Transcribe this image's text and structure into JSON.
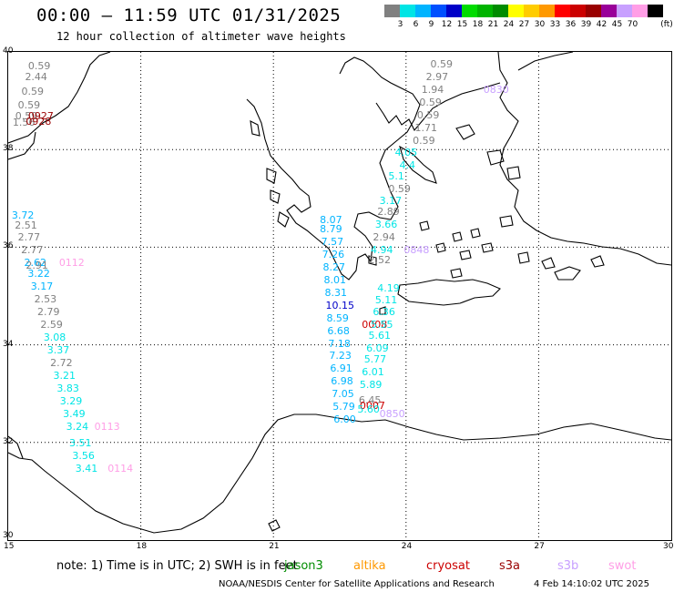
{
  "header": {
    "title": "00:00 — 11:59 UTC 01/31/2025",
    "subtitle": "12 hour collection of altimeter wave heights"
  },
  "colorbar": {
    "unit": "(ft)",
    "entries": [
      {
        "label": "",
        "color": "#808080"
      },
      {
        "label": "3",
        "color": "#00e5e5"
      },
      {
        "label": "6",
        "color": "#00b4ff"
      },
      {
        "label": "9",
        "color": "#0050ff"
      },
      {
        "label": "12",
        "color": "#0000c8"
      },
      {
        "label": "15",
        "color": "#00dc00"
      },
      {
        "label": "18",
        "color": "#00b400"
      },
      {
        "label": "21",
        "color": "#008c00"
      },
      {
        "label": "24",
        "color": "#ffff00"
      },
      {
        "label": "27",
        "color": "#ffcc00"
      },
      {
        "label": "30",
        "color": "#ff9900"
      },
      {
        "label": "33",
        "color": "#ff0000"
      },
      {
        "label": "36",
        "color": "#cc0000"
      },
      {
        "label": "39",
        "color": "#990000"
      },
      {
        "label": "42",
        "color": "#990099"
      },
      {
        "label": "45",
        "color": "#c8a0ff"
      },
      {
        "label": "70",
        "color": "#ff9ee6"
      },
      {
        "label": "",
        "color": "#000000"
      }
    ]
  },
  "axes": {
    "lon_labels": [
      "15",
      "18",
      "21",
      "24",
      "27",
      "30"
    ],
    "lat_labels": [
      "40",
      "38",
      "36",
      "34",
      "32",
      "30"
    ]
  },
  "observations": [
    {
      "v": "0.59",
      "c": "#808080",
      "lon": 15.45,
      "lat": 39.7
    },
    {
      "v": "2.44",
      "c": "#808080",
      "lon": 15.38,
      "lat": 39.47
    },
    {
      "v": "0.59",
      "c": "#808080",
      "lon": 15.3,
      "lat": 39.18
    },
    {
      "v": "0.59",
      "c": "#808080",
      "lon": 15.22,
      "lat": 38.9
    },
    {
      "v": "0.59",
      "c": "#808080",
      "lon": 15.16,
      "lat": 38.67
    },
    {
      "v": "1.56",
      "c": "#808080",
      "lon": 15.1,
      "lat": 38.55
    },
    {
      "v": "0927",
      "c": "#990000",
      "lon": 15.45,
      "lat": 38.67
    },
    {
      "v": "0928",
      "c": "#990000",
      "lon": 15.4,
      "lat": 38.56
    },
    {
      "v": "3.72",
      "c": "#00b4ff",
      "lon": 15.08,
      "lat": 36.64
    },
    {
      "v": "2.51",
      "c": "#808080",
      "lon": 15.15,
      "lat": 36.44
    },
    {
      "v": "2.77",
      "c": "#808080",
      "lon": 15.22,
      "lat": 36.2
    },
    {
      "v": "2.77",
      "c": "#808080",
      "lon": 15.29,
      "lat": 35.94
    },
    {
      "v": "2.62",
      "c": "#00b4ff",
      "lon": 15.36,
      "lat": 35.68
    },
    {
      "v": "2.91",
      "c": "#808080",
      "lon": 15.4,
      "lat": 35.62
    },
    {
      "v": "3.22",
      "c": "#00b4ff",
      "lon": 15.44,
      "lat": 35.45
    },
    {
      "v": "3.17",
      "c": "#00b4ff",
      "lon": 15.51,
      "lat": 35.18
    },
    {
      "v": "2.53",
      "c": "#808080",
      "lon": 15.59,
      "lat": 34.92
    },
    {
      "v": "2.79",
      "c": "#808080",
      "lon": 15.66,
      "lat": 34.66
    },
    {
      "v": "2.59",
      "c": "#808080",
      "lon": 15.73,
      "lat": 34.4
    },
    {
      "v": "3.08",
      "c": "#00e5e5",
      "lon": 15.8,
      "lat": 34.14
    },
    {
      "v": "3.37",
      "c": "#00e5e5",
      "lon": 15.88,
      "lat": 33.88
    },
    {
      "v": "2.72",
      "c": "#808080",
      "lon": 15.95,
      "lat": 33.62
    },
    {
      "v": "3.21",
      "c": "#00e5e5",
      "lon": 16.02,
      "lat": 33.36
    },
    {
      "v": "3.83",
      "c": "#00e5e5",
      "lon": 16.1,
      "lat": 33.1
    },
    {
      "v": "3.29",
      "c": "#00e5e5",
      "lon": 16.17,
      "lat": 32.84
    },
    {
      "v": "3.49",
      "c": "#00e5e5",
      "lon": 16.24,
      "lat": 32.58
    },
    {
      "v": "3.24",
      "c": "#00e5e5",
      "lon": 16.31,
      "lat": 32.32
    },
    {
      "v": "3.51",
      "c": "#00e5e5",
      "lon": 16.38,
      "lat": 31.97
    },
    {
      "v": "3.56",
      "c": "#00e5e5",
      "lon": 16.45,
      "lat": 31.71
    },
    {
      "v": "3.41",
      "c": "#00e5e5",
      "lon": 16.52,
      "lat": 31.45
    },
    {
      "v": "0112",
      "c": "#ff9ee6",
      "lon": 16.15,
      "lat": 35.68
    },
    {
      "v": "0113",
      "c": "#ff9ee6",
      "lon": 16.95,
      "lat": 32.32
    },
    {
      "v": "0114",
      "c": "#ff9ee6",
      "lon": 17.25,
      "lat": 31.45
    },
    {
      "v": "8.07",
      "c": "#00b4ff",
      "lon": 22.05,
      "lat": 36.54
    },
    {
      "v": "8.79",
      "c": "#00b4ff",
      "lon": 22.05,
      "lat": 36.36
    },
    {
      "v": "7.57",
      "c": "#00b4ff",
      "lon": 22.08,
      "lat": 36.1
    },
    {
      "v": "7.26",
      "c": "#00b4ff",
      "lon": 22.1,
      "lat": 35.84
    },
    {
      "v": "8.27",
      "c": "#00b4ff",
      "lon": 22.12,
      "lat": 35.58
    },
    {
      "v": "8.01",
      "c": "#00b4ff",
      "lon": 22.14,
      "lat": 35.32
    },
    {
      "v": "8.31",
      "c": "#00b4ff",
      "lon": 22.16,
      "lat": 35.06
    },
    {
      "v": "10.15",
      "c": "#0000c8",
      "lon": 22.18,
      "lat": 34.8
    },
    {
      "v": "8.59",
      "c": "#00b4ff",
      "lon": 22.2,
      "lat": 34.54
    },
    {
      "v": "6.68",
      "c": "#00b4ff",
      "lon": 22.22,
      "lat": 34.28
    },
    {
      "v": "7.18",
      "c": "#00b4ff",
      "lon": 22.24,
      "lat": 34.02
    },
    {
      "v": "7.23",
      "c": "#00b4ff",
      "lon": 22.26,
      "lat": 33.76
    },
    {
      "v": "6.91",
      "c": "#00b4ff",
      "lon": 22.28,
      "lat": 33.5
    },
    {
      "v": "6.98",
      "c": "#00b4ff",
      "lon": 22.3,
      "lat": 33.24
    },
    {
      "v": "7.05",
      "c": "#00b4ff",
      "lon": 22.32,
      "lat": 32.98
    },
    {
      "v": "5.79",
      "c": "#00b4ff",
      "lon": 22.34,
      "lat": 32.72
    },
    {
      "v": "6.00",
      "c": "#00b4ff",
      "lon": 22.36,
      "lat": 32.46
    },
    {
      "v": "0008",
      "c": "#cc0000",
      "lon": 23.0,
      "lat": 34.41
    },
    {
      "v": "0.59",
      "c": "#808080",
      "lon": 24.55,
      "lat": 39.74
    },
    {
      "v": "2.97",
      "c": "#808080",
      "lon": 24.45,
      "lat": 39.48
    },
    {
      "v": "1.94",
      "c": "#808080",
      "lon": 24.35,
      "lat": 39.22
    },
    {
      "v": "0.59",
      "c": "#808080",
      "lon": 24.3,
      "lat": 38.96
    },
    {
      "v": "0.59",
      "c": "#808080",
      "lon": 24.25,
      "lat": 38.7
    },
    {
      "v": "1.71",
      "c": "#808080",
      "lon": 24.2,
      "lat": 38.44
    },
    {
      "v": "0.59",
      "c": "#808080",
      "lon": 24.15,
      "lat": 38.18
    },
    {
      "v": "0830",
      "c": "#c8a0ff",
      "lon": 25.75,
      "lat": 39.22
    },
    {
      "v": "4.05",
      "c": "#00e5e5",
      "lon": 23.75,
      "lat": 37.92
    },
    {
      "v": "4.4",
      "c": "#00e5e5",
      "lon": 23.85,
      "lat": 37.66
    },
    {
      "v": "5.1",
      "c": "#00e5e5",
      "lon": 23.6,
      "lat": 37.44
    },
    {
      "v": "0.59",
      "c": "#808080",
      "lon": 23.6,
      "lat": 37.18
    },
    {
      "v": "3.17",
      "c": "#00e5e5",
      "lon": 23.4,
      "lat": 36.94
    },
    {
      "v": "2.89",
      "c": "#808080",
      "lon": 23.35,
      "lat": 36.72
    },
    {
      "v": "3.66",
      "c": "#00e5e5",
      "lon": 23.3,
      "lat": 36.46
    },
    {
      "v": "2.94",
      "c": "#808080",
      "lon": 23.25,
      "lat": 36.2
    },
    {
      "v": "4.94",
      "c": "#00e5e5",
      "lon": 23.2,
      "lat": 35.94
    },
    {
      "v": "0848",
      "c": "#c8a0ff",
      "lon": 23.95,
      "lat": 35.94
    },
    {
      "v": "2.52",
      "c": "#808080",
      "lon": 23.15,
      "lat": 35.72
    },
    {
      "v": "4.19",
      "c": "#00e5e5",
      "lon": 23.35,
      "lat": 35.14
    },
    {
      "v": "5.11",
      "c": "#00e5e5",
      "lon": 23.3,
      "lat": 34.91
    },
    {
      "v": "6.36",
      "c": "#00e5e5",
      "lon": 23.25,
      "lat": 34.67
    },
    {
      "v": "5.55",
      "c": "#00e5e5",
      "lon": 23.2,
      "lat": 34.41
    },
    {
      "v": "5.61",
      "c": "#00e5e5",
      "lon": 23.15,
      "lat": 34.18
    },
    {
      "v": "6.09",
      "c": "#00e5e5",
      "lon": 23.1,
      "lat": 33.92
    },
    {
      "v": "5.77",
      "c": "#00e5e5",
      "lon": 23.05,
      "lat": 33.69
    },
    {
      "v": "6.01",
      "c": "#00e5e5",
      "lon": 23.0,
      "lat": 33.43
    },
    {
      "v": "5.89",
      "c": "#00e5e5",
      "lon": 22.95,
      "lat": 33.17
    },
    {
      "v": "6.45",
      "c": "#808080",
      "lon": 22.93,
      "lat": 32.86
    },
    {
      "v": "0007",
      "c": "#cc0000",
      "lon": 22.95,
      "lat": 32.75
    },
    {
      "v": "5.60",
      "c": "#00e5e5",
      "lon": 22.9,
      "lat": 32.66
    },
    {
      "v": "0850",
      "c": "#c8a0ff",
      "lon": 23.4,
      "lat": 32.57
    }
  ],
  "footer": {
    "note": "note:  1) Time is in UTC; 2) SWH is in feet",
    "legend": [
      {
        "name": "jason3",
        "color": "#008c00"
      },
      {
        "name": "altika",
        "color": "#ff9900"
      },
      {
        "name": "cryosat",
        "color": "#cc0000"
      },
      {
        "name": "s3a",
        "color": "#990000"
      },
      {
        "name": "s3b",
        "color": "#c8a0ff"
      },
      {
        "name": "swot",
        "color": "#ff9ee6"
      }
    ],
    "credit": "NOAA/NESDIS Center for Satellite Applications and Research",
    "timestamp": "4 Feb 14:10:02 UTC 2025"
  }
}
